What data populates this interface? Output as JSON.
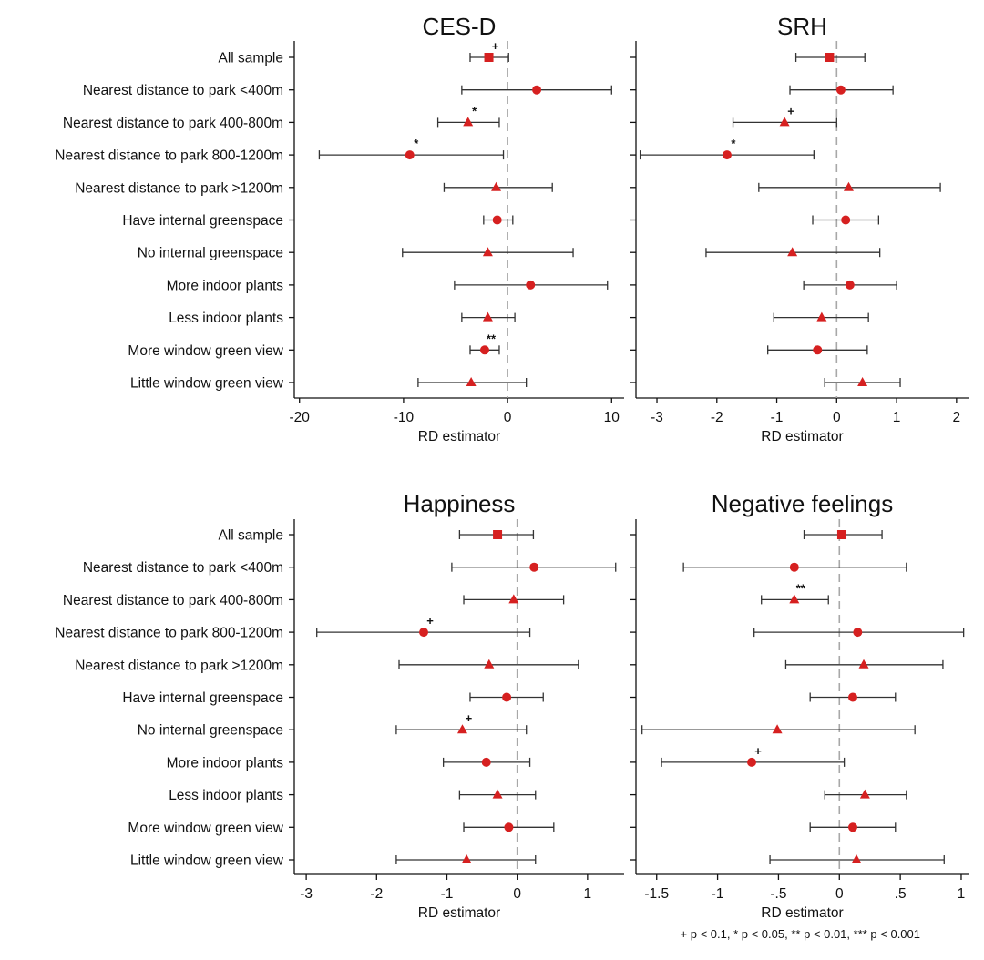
{
  "chart_data": [
    {
      "type": "forest",
      "title": "CES-D",
      "xlabel": "RD estimator",
      "xlim": [
        -20.5,
        11.2
      ],
      "ticks": [
        -20,
        -10,
        0,
        10
      ],
      "tick_labels": [
        "-20",
        "-10",
        "0",
        "10"
      ],
      "reference_line": 0,
      "rows": [
        {
          "label": "All sample",
          "estimate": -1.8,
          "ci": [
            -3.6,
            0.1
          ],
          "marker": "square",
          "sig": "+"
        },
        {
          "label": "Nearest distance to park <400m",
          "estimate": 2.8,
          "ci": [
            -4.4,
            10.0
          ],
          "marker": "circle",
          "sig": ""
        },
        {
          "label": "Nearest distance to park 400-800m",
          "estimate": -3.8,
          "ci": [
            -6.7,
            -0.8
          ],
          "marker": "triangle",
          "sig": "*"
        },
        {
          "label": "Nearest distance to park 800-1200m",
          "estimate": -9.4,
          "ci": [
            -18.1,
            -0.4
          ],
          "marker": "circle",
          "sig": "*"
        },
        {
          "label": "Nearest distance to park >1200m",
          "estimate": -1.1,
          "ci": [
            -6.1,
            4.3
          ],
          "marker": "triangle",
          "sig": ""
        },
        {
          "label": "Have internal greenspace",
          "estimate": -1.0,
          "ci": [
            -2.3,
            0.5
          ],
          "marker": "circle",
          "sig": ""
        },
        {
          "label": "No internal greenspace",
          "estimate": -1.9,
          "ci": [
            -10.1,
            6.3
          ],
          "marker": "triangle",
          "sig": ""
        },
        {
          "label": "More indoor plants",
          "estimate": 2.2,
          "ci": [
            -5.1,
            9.6
          ],
          "marker": "circle",
          "sig": ""
        },
        {
          "label": "Less indoor plants",
          "estimate": -1.9,
          "ci": [
            -4.4,
            0.7
          ],
          "marker": "triangle",
          "sig": ""
        },
        {
          "label": "More window green view",
          "estimate": -2.2,
          "ci": [
            -3.6,
            -0.8
          ],
          "marker": "circle",
          "sig": "**"
        },
        {
          "label": "Little window green view",
          "estimate": -3.5,
          "ci": [
            -8.6,
            1.8
          ],
          "marker": "triangle",
          "sig": ""
        }
      ]
    },
    {
      "type": "forest",
      "title": "SRH",
      "xlabel": "RD estimator",
      "xlim": [
        -3.35,
        2.2
      ],
      "ticks": [
        -3,
        -2,
        -1,
        0,
        1,
        2
      ],
      "tick_labels": [
        "-3",
        "-2",
        "-1",
        "0",
        "1",
        "2"
      ],
      "reference_line": 0,
      "rows": [
        {
          "label": "All sample",
          "estimate": -0.12,
          "ci": [
            -0.68,
            0.47
          ],
          "marker": "square",
          "sig": ""
        },
        {
          "label": "Nearest distance to park <400m",
          "estimate": 0.07,
          "ci": [
            -0.78,
            0.94
          ],
          "marker": "circle",
          "sig": ""
        },
        {
          "label": "Nearest distance to park 400-800m",
          "estimate": -0.87,
          "ci": [
            -1.73,
            0.0
          ],
          "marker": "triangle",
          "sig": "+"
        },
        {
          "label": "Nearest distance to park 800-1200m",
          "estimate": -1.83,
          "ci": [
            -3.28,
            -0.38
          ],
          "marker": "circle",
          "sig": "*"
        },
        {
          "label": "Nearest distance to park >1200m",
          "estimate": 0.2,
          "ci": [
            -1.3,
            1.73
          ],
          "marker": "triangle",
          "sig": ""
        },
        {
          "label": "Have internal greenspace",
          "estimate": 0.15,
          "ci": [
            -0.4,
            0.7
          ],
          "marker": "circle",
          "sig": ""
        },
        {
          "label": "No internal greenspace",
          "estimate": -0.74,
          "ci": [
            -2.18,
            0.72
          ],
          "marker": "triangle",
          "sig": ""
        },
        {
          "label": "More indoor plants",
          "estimate": 0.22,
          "ci": [
            -0.55,
            1.0
          ],
          "marker": "circle",
          "sig": ""
        },
        {
          "label": "Less indoor plants",
          "estimate": -0.25,
          "ci": [
            -1.05,
            0.53
          ],
          "marker": "triangle",
          "sig": ""
        },
        {
          "label": "More window green view",
          "estimate": -0.32,
          "ci": [
            -1.15,
            0.51
          ],
          "marker": "circle",
          "sig": ""
        },
        {
          "label": "Little window green view",
          "estimate": 0.43,
          "ci": [
            -0.2,
            1.06
          ],
          "marker": "triangle",
          "sig": ""
        }
      ]
    },
    {
      "type": "forest",
      "title": "Happiness",
      "xlabel": "RD estimator",
      "xlim": [
        -3.17,
        1.52
      ],
      "ticks": [
        -3,
        -2,
        -1,
        0,
        1
      ],
      "tick_labels": [
        "-3",
        "-2",
        "-1",
        "0",
        "1"
      ],
      "reference_line": 0,
      "rows": [
        {
          "label": "All sample",
          "estimate": -0.28,
          "ci": [
            -0.82,
            0.23
          ],
          "marker": "square",
          "sig": ""
        },
        {
          "label": "Nearest distance to park <400m",
          "estimate": 0.24,
          "ci": [
            -0.93,
            1.4
          ],
          "marker": "circle",
          "sig": ""
        },
        {
          "label": "Nearest distance to park 400-800m",
          "estimate": -0.05,
          "ci": [
            -0.76,
            0.66
          ],
          "marker": "triangle",
          "sig": ""
        },
        {
          "label": "Nearest distance to park 800-1200m",
          "estimate": -1.33,
          "ci": [
            -2.85,
            0.18
          ],
          "marker": "circle",
          "sig": "+"
        },
        {
          "label": "Nearest distance to park >1200m",
          "estimate": -0.4,
          "ci": [
            -1.68,
            0.87
          ],
          "marker": "triangle",
          "sig": ""
        },
        {
          "label": "Have internal greenspace",
          "estimate": -0.15,
          "ci": [
            -0.67,
            0.37
          ],
          "marker": "circle",
          "sig": ""
        },
        {
          "label": "No internal greenspace",
          "estimate": -0.78,
          "ci": [
            -1.72,
            0.13
          ],
          "marker": "triangle",
          "sig": "+"
        },
        {
          "label": "More indoor plants",
          "estimate": -0.44,
          "ci": [
            -1.05,
            0.18
          ],
          "marker": "circle",
          "sig": ""
        },
        {
          "label": "Less indoor plants",
          "estimate": -0.28,
          "ci": [
            -0.82,
            0.26
          ],
          "marker": "triangle",
          "sig": ""
        },
        {
          "label": "More window green view",
          "estimate": -0.12,
          "ci": [
            -0.76,
            0.52
          ],
          "marker": "circle",
          "sig": ""
        },
        {
          "label": "Little window green view",
          "estimate": -0.72,
          "ci": [
            -1.72,
            0.26
          ],
          "marker": "triangle",
          "sig": ""
        }
      ]
    },
    {
      "type": "forest",
      "title": "Negative feelings",
      "xlabel": "RD estimator",
      "xlim": [
        -1.67,
        1.06
      ],
      "ticks": [
        -1.5,
        -1,
        -0.5,
        0,
        0.5,
        1
      ],
      "tick_labels": [
        "-1.5",
        "-1",
        "-.5",
        "0",
        ".5",
        "1"
      ],
      "reference_line": 0,
      "rows": [
        {
          "label": "All sample",
          "estimate": 0.02,
          "ci": [
            -0.29,
            0.35
          ],
          "marker": "square",
          "sig": ""
        },
        {
          "label": "Nearest distance to park <400m",
          "estimate": -0.37,
          "ci": [
            -1.28,
            0.55
          ],
          "marker": "circle",
          "sig": ""
        },
        {
          "label": "Nearest distance to park 400-800m",
          "estimate": -0.37,
          "ci": [
            -0.64,
            -0.09
          ],
          "marker": "triangle",
          "sig": "**"
        },
        {
          "label": "Nearest distance to park 800-1200m",
          "estimate": 0.15,
          "ci": [
            -0.7,
            1.02
          ],
          "marker": "circle",
          "sig": ""
        },
        {
          "label": "Nearest distance to park >1200m",
          "estimate": 0.2,
          "ci": [
            -0.44,
            0.85
          ],
          "marker": "triangle",
          "sig": ""
        },
        {
          "label": "Have internal greenspace",
          "estimate": 0.11,
          "ci": [
            -0.24,
            0.46
          ],
          "marker": "circle",
          "sig": ""
        },
        {
          "label": "No internal greenspace",
          "estimate": -0.51,
          "ci": [
            -1.62,
            0.62
          ],
          "marker": "triangle",
          "sig": ""
        },
        {
          "label": "More indoor plants",
          "estimate": -0.72,
          "ci": [
            -1.46,
            0.04
          ],
          "marker": "circle",
          "sig": "+"
        },
        {
          "label": "Less indoor plants",
          "estimate": 0.21,
          "ci": [
            -0.12,
            0.55
          ],
          "marker": "triangle",
          "sig": ""
        },
        {
          "label": "More window green view",
          "estimate": 0.11,
          "ci": [
            -0.24,
            0.46
          ],
          "marker": "circle",
          "sig": ""
        },
        {
          "label": "Little window green view",
          "estimate": 0.14,
          "ci": [
            -0.57,
            0.86
          ],
          "marker": "triangle",
          "sig": ""
        }
      ]
    }
  ],
  "footnote": "+ p < 0.1, * p < 0.05, ** p < 0.01, *** p < 0.001",
  "colors": {
    "marker": "#d62020",
    "line": "#333333",
    "reference": "#a8a8a8",
    "axis": "#111111"
  }
}
